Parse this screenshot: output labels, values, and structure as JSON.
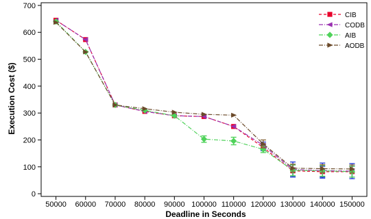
{
  "chart_data": {
    "type": "line",
    "xlabel": "Deadline in Seconds",
    "ylabel": "Execution Cost ($)",
    "x": [
      50000,
      60000,
      70000,
      80000,
      90000,
      100000,
      110000,
      120000,
      130000,
      140000,
      150000
    ],
    "x_tick_labels": [
      "50000",
      "60000",
      "70000",
      "80000",
      "90000",
      "100000",
      "110000",
      "120000",
      "130000",
      "140000",
      "150000"
    ],
    "ylim": [
      -10,
      710
    ],
    "y_ticks": [
      0,
      100,
      200,
      300,
      400,
      500,
      600,
      700
    ],
    "y_tick_labels": [
      "0",
      "100",
      "200",
      "300",
      "400",
      "500",
      "600",
      "700"
    ],
    "grid": false,
    "legend_position": "top-right",
    "series": [
      {
        "name": "CIB",
        "color": "#e8002a",
        "marker": "square",
        "dash": "dashed",
        "values": [
          645,
          573,
          330,
          306,
          290,
          287,
          250,
          172,
          85,
          82,
          82
        ],
        "error": [
          0,
          0,
          0,
          0,
          0,
          0,
          0,
          12,
          22,
          20,
          20
        ]
      },
      {
        "name": "CODB",
        "color": "#9a30b0",
        "marker": "triangle-left",
        "dash": "dashdot",
        "values": [
          645,
          573,
          330,
          306,
          290,
          287,
          250,
          180,
          90,
          86,
          84
        ],
        "error": [
          0,
          0,
          0,
          0,
          0,
          0,
          0,
          12,
          28,
          28,
          28
        ]
      },
      {
        "name": "AIB",
        "color": "#4fd25a",
        "marker": "diamond",
        "dash": "dashdot",
        "values": [
          640,
          527,
          330,
          310,
          290,
          203,
          196,
          165,
          87,
          85,
          82
        ],
        "error": [
          0,
          0,
          0,
          0,
          0,
          12,
          14,
          12,
          20,
          20,
          20
        ]
      },
      {
        "name": "AODB",
        "color": "#6b4a2a",
        "marker": "triangle-right",
        "dash": "dashdot",
        "values": [
          637,
          527,
          330,
          316,
          303,
          295,
          292,
          185,
          95,
          93,
          92
        ],
        "error": [
          0,
          0,
          0,
          0,
          0,
          0,
          0,
          15,
          15,
          15,
          15
        ]
      }
    ],
    "colors": {
      "error_bar": "#2a3fd6"
    }
  }
}
